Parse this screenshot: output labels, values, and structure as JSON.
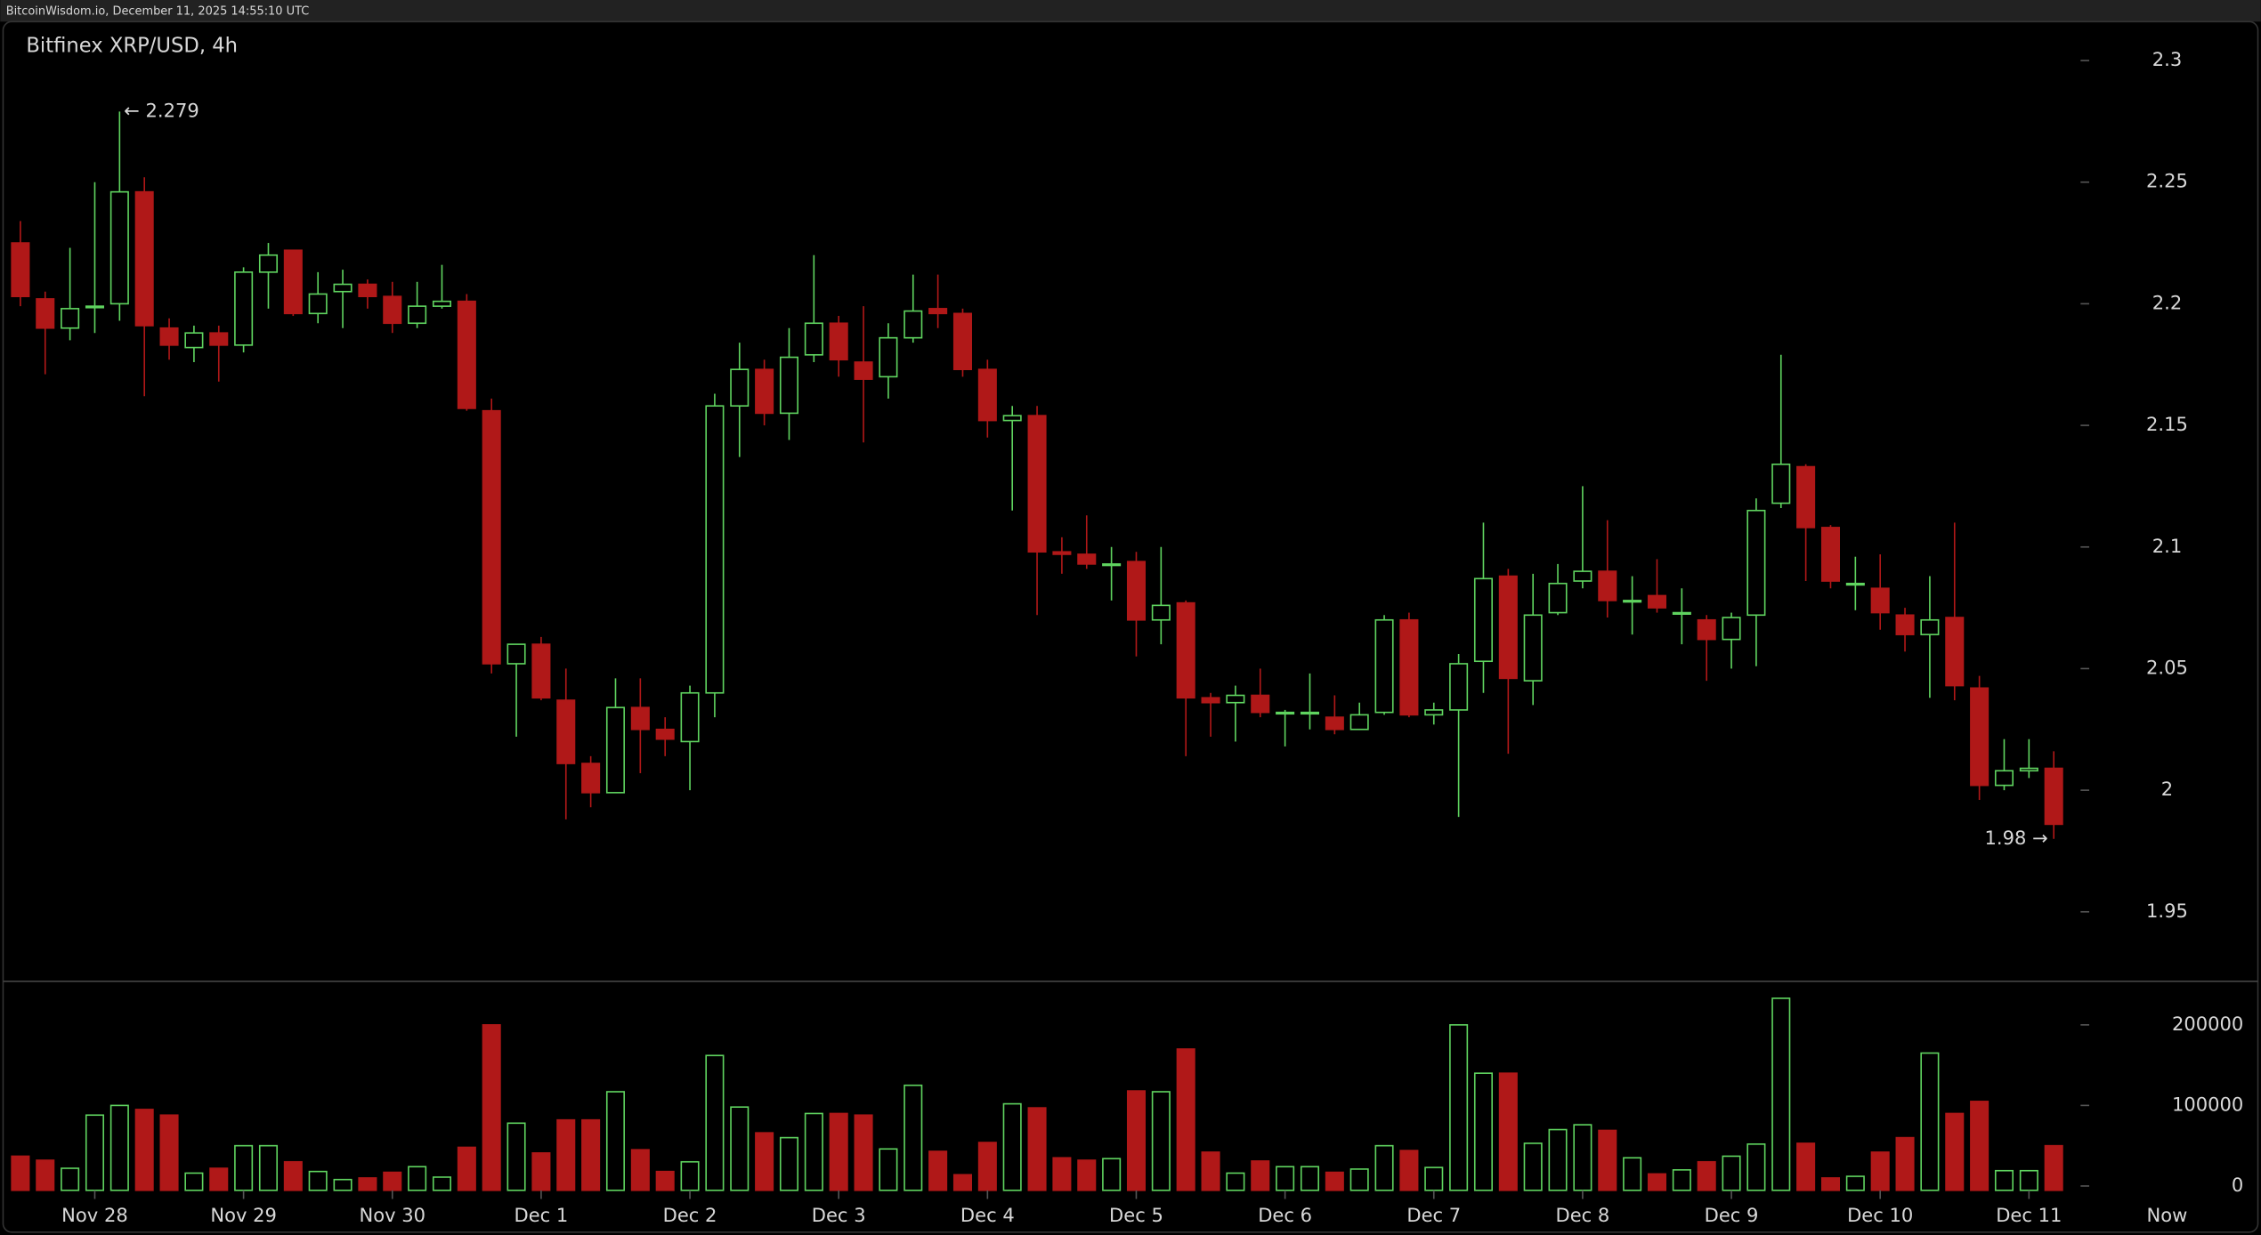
{
  "chart_data": {
    "type": "candlestick",
    "header": "BitcoinWisdom.io, December 11, 2025 14:55:10 UTC",
    "title": "Bitfinex XRP/USD, 4h",
    "categories": [
      null,
      null,
      null,
      "Nov 28",
      null,
      null,
      null,
      null,
      null,
      "Nov 29",
      null,
      null,
      null,
      null,
      null,
      "Nov 30",
      null,
      null,
      null,
      null,
      null,
      "Dec 1",
      null,
      null,
      null,
      null,
      null,
      "Dec 2",
      null,
      null,
      null,
      null,
      null,
      "Dec 3",
      null,
      null,
      null,
      null,
      null,
      "Dec 4",
      null,
      null,
      null,
      null,
      null,
      "Dec 5",
      null,
      null,
      null,
      null,
      null,
      "Dec 6",
      null,
      null,
      null,
      null,
      null,
      "Dec 7",
      null,
      null,
      null,
      null,
      null,
      "Dec 8",
      null,
      null,
      null,
      null,
      null,
      "Dec 9",
      null,
      null,
      null,
      null,
      null,
      "Dec 10",
      null,
      null,
      null,
      null,
      null,
      "Dec 11",
      null
    ],
    "open": [
      2.225,
      2.202,
      2.19,
      2.199,
      2.2,
      2.246,
      2.19,
      2.182,
      2.188,
      2.183,
      2.213,
      2.222,
      2.196,
      2.205,
      2.208,
      2.203,
      2.192,
      2.199,
      2.201,
      2.156,
      2.052,
      2.06,
      2.037,
      2.011,
      1.999,
      2.034,
      2.025,
      2.02,
      2.04,
      2.158,
      2.173,
      2.155,
      2.179,
      2.192,
      2.176,
      2.17,
      2.186,
      2.198,
      2.196,
      2.173,
      2.152,
      2.154,
      2.098,
      2.097,
      2.093,
      2.094,
      2.07,
      2.077,
      2.038,
      2.036,
      2.039,
      2.032,
      2.032,
      2.03,
      2.025,
      2.032,
      2.07,
      2.031,
      2.033,
      2.053,
      2.088,
      2.045,
      2.073,
      2.086,
      2.09,
      2.078,
      2.08,
      2.073,
      2.07,
      2.062,
      2.072,
      2.118,
      2.133,
      2.108,
      2.085,
      2.083,
      2.072,
      2.064,
      2.071,
      2.042,
      2.002,
      2.008,
      2.009
    ],
    "high": [
      2.234,
      2.205,
      2.223,
      2.25,
      2.279,
      2.252,
      2.194,
      2.191,
      2.191,
      2.215,
      2.225,
      2.222,
      2.213,
      2.214,
      2.21,
      2.209,
      2.209,
      2.216,
      2.204,
      2.161,
      2.06,
      2.063,
      2.05,
      2.014,
      2.046,
      2.046,
      2.03,
      2.043,
      2.163,
      2.184,
      2.177,
      2.19,
      2.22,
      2.195,
      2.199,
      2.192,
      2.212,
      2.212,
      2.198,
      2.177,
      2.158,
      2.158,
      2.104,
      2.113,
      2.1,
      2.098,
      2.1,
      2.078,
      2.04,
      2.043,
      2.05,
      2.033,
      2.048,
      2.039,
      2.036,
      2.072,
      2.073,
      2.036,
      2.056,
      2.11,
      2.091,
      2.089,
      2.093,
      2.125,
      2.111,
      2.088,
      2.095,
      2.083,
      2.072,
      2.073,
      2.12,
      2.179,
      2.134,
      2.109,
      2.096,
      2.097,
      2.075,
      2.088,
      2.11,
      2.047,
      2.021,
      2.021,
      2.016
    ],
    "low": [
      2.199,
      2.171,
      2.185,
      2.188,
      2.193,
      2.162,
      2.177,
      2.176,
      2.168,
      2.18,
      2.198,
      2.195,
      2.192,
      2.19,
      2.198,
      2.188,
      2.19,
      2.198,
      2.156,
      2.048,
      2.022,
      2.037,
      1.988,
      1.993,
      1.999,
      2.007,
      2.014,
      2.0,
      2.03,
      2.137,
      2.15,
      2.144,
      2.176,
      2.17,
      2.143,
      2.161,
      2.184,
      2.19,
      2.17,
      2.145,
      2.115,
      2.072,
      2.089,
      2.091,
      2.078,
      2.055,
      2.06,
      2.014,
      2.022,
      2.02,
      2.03,
      2.018,
      2.025,
      2.023,
      2.025,
      2.031,
      2.03,
      2.027,
      1.989,
      2.04,
      2.015,
      2.035,
      2.072,
      2.083,
      2.071,
      2.064,
      2.073,
      2.06,
      2.045,
      2.05,
      2.051,
      2.116,
      2.086,
      2.083,
      2.074,
      2.066,
      2.057,
      2.038,
      2.037,
      1.996,
      2.0,
      2.005,
      1.98
    ],
    "close": [
      2.203,
      2.19,
      2.198,
      2.199,
      2.246,
      2.191,
      2.183,
      2.188,
      2.183,
      2.213,
      2.22,
      2.196,
      2.204,
      2.208,
      2.203,
      2.192,
      2.199,
      2.201,
      2.157,
      2.052,
      2.06,
      2.038,
      2.011,
      1.999,
      2.034,
      2.025,
      2.021,
      2.04,
      2.158,
      2.173,
      2.155,
      2.178,
      2.192,
      2.177,
      2.169,
      2.186,
      2.197,
      2.196,
      2.173,
      2.152,
      2.154,
      2.098,
      2.097,
      2.093,
      2.093,
      2.07,
      2.076,
      2.038,
      2.036,
      2.039,
      2.032,
      2.032,
      2.032,
      2.025,
      2.031,
      2.07,
      2.031,
      2.033,
      2.052,
      2.087,
      2.046,
      2.072,
      2.085,
      2.09,
      2.078,
      2.078,
      2.075,
      2.073,
      2.062,
      2.071,
      2.115,
      2.134,
      2.108,
      2.086,
      2.085,
      2.073,
      2.064,
      2.07,
      2.043,
      2.002,
      2.008,
      2.009,
      1.986
    ],
    "volume": [
      37000,
      32000,
      22000,
      88000,
      100000,
      95000,
      88000,
      16000,
      22000,
      50000,
      50000,
      30000,
      18000,
      8000,
      10000,
      17000,
      24000,
      11000,
      48000,
      200000,
      78000,
      41000,
      82000,
      82000,
      117000,
      45000,
      18000,
      30000,
      162000,
      98000,
      66000,
      60000,
      90000,
      90000,
      88000,
      46000,
      125000,
      43000,
      14000,
      54000,
      102000,
      97000,
      35000,
      32000,
      34000,
      118000,
      117000,
      170000,
      42000,
      16000,
      31000,
      24000,
      24000,
      17000,
      21000,
      50000,
      44000,
      23000,
      200000,
      140000,
      140000,
      53000,
      70000,
      76000,
      69000,
      35000,
      15000,
      20000,
      30000,
      37000,
      52000,
      233000,
      53000,
      10000,
      12000,
      42000,
      60000,
      165000,
      90000,
      105000,
      19000,
      19000,
      50000
    ],
    "up_color": "#5fd35f",
    "down_color": "#b01818",
    "ylim": [
      1.922,
      2.316
    ],
    "yticks": [
      1.95,
      2,
      2.05,
      2.1,
      2.15,
      2.2,
      2.25,
      2.3
    ],
    "volume_lim": [
      0,
      254000
    ],
    "volume_ticks": [
      0,
      100000,
      200000
    ],
    "annotations": [
      "← 2.279",
      "1.98 →"
    ],
    "now_label": "Now"
  }
}
